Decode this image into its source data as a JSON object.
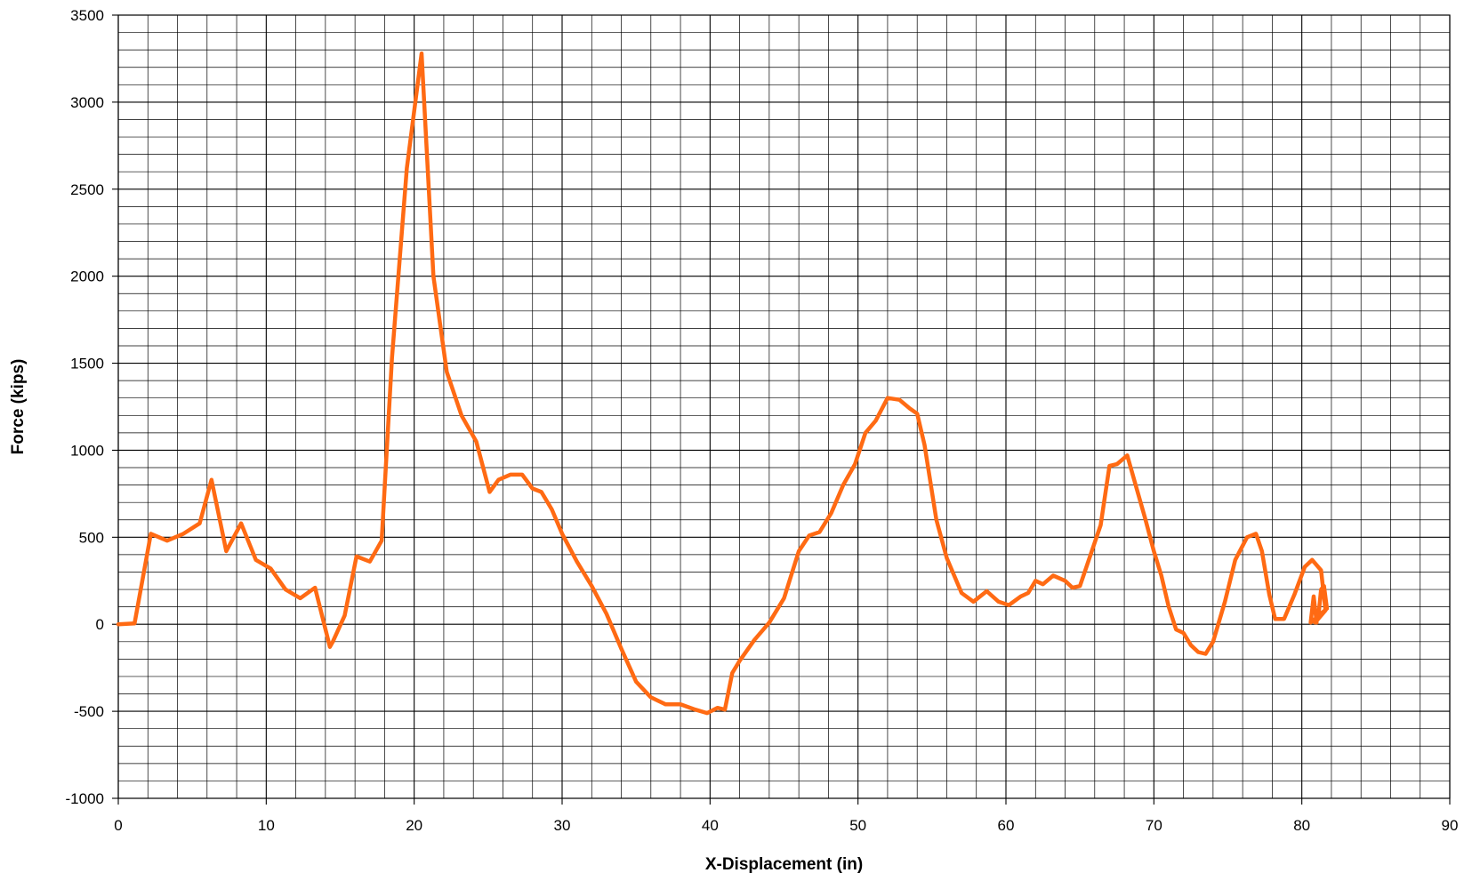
{
  "chart_data": {
    "type": "line",
    "title": "",
    "xlabel": "X-Displacement (in)",
    "ylabel": "Force (kips)",
    "xlim": [
      0,
      90
    ],
    "ylim": [
      -1000,
      3500
    ],
    "xticks": [
      0,
      10,
      20,
      30,
      40,
      50,
      60,
      70,
      80,
      90
    ],
    "yticks": [
      -1000,
      -500,
      0,
      500,
      1000,
      1500,
      2000,
      2500,
      3000,
      3500
    ],
    "grid": true,
    "legend": "none",
    "series": [
      {
        "color": "#FF6A13",
        "x": [
          0,
          1.1,
          2.2,
          3.3,
          4.4,
          5.5,
          6.3,
          7.3,
          8.3,
          9.3,
          10.3,
          11.3,
          12.3,
          13.3,
          14.3,
          14.5,
          15.3,
          16.1,
          17.0,
          17.8,
          18.5,
          19.5,
          20.5,
          21.3,
          22.2,
          23.2,
          24.2,
          25.1,
          25.7,
          26.5,
          27.3,
          28.0,
          28.6,
          29.3,
          30.0,
          31.0,
          32.0,
          33.0,
          34.0,
          35.0,
          36.0,
          37.0,
          38.0,
          39.0,
          39.8,
          40.5,
          41.0,
          41.5,
          42.0,
          43.0,
          44.0,
          45.0,
          46.0,
          46.7,
          47.4,
          48.2,
          49.0,
          49.8,
          50.5,
          51.2,
          52.0,
          52.8,
          53.5,
          54.0,
          54.5,
          55.3,
          56.0,
          57.0,
          57.8,
          58.7,
          59.5,
          60.2,
          61.0,
          61.5,
          62.0,
          62.5,
          63.2,
          64.0,
          64.5,
          65.0,
          65.8,
          66.4,
          67.0,
          67.5,
          68.2,
          68.8,
          69.4,
          70.0,
          70.5,
          71.0,
          71.5,
          72.0,
          72.5,
          73.0,
          73.5,
          74.0,
          74.8,
          75.5,
          76.3,
          76.9,
          77.3,
          77.8,
          78.2,
          78.8,
          79.5,
          80.2,
          80.7,
          81.3,
          81.6,
          80.9,
          81.1,
          81.3,
          81.5,
          81.7,
          80.6,
          80.8,
          81.0
        ],
        "y": [
          0,
          5,
          520,
          480,
          520,
          580,
          830,
          420,
          580,
          370,
          320,
          200,
          150,
          210,
          -130,
          -100,
          50,
          390,
          360,
          480,
          1530,
          2620,
          3280,
          2000,
          1450,
          1200,
          1050,
          760,
          830,
          860,
          860,
          780,
          760,
          660,
          520,
          360,
          220,
          60,
          -140,
          -330,
          -420,
          -460,
          -460,
          -490,
          -510,
          -480,
          -490,
          -280,
          -210,
          -90,
          10,
          150,
          420,
          510,
          530,
          640,
          800,
          920,
          1100,
          1170,
          1300,
          1290,
          1240,
          1210,
          1030,
          600,
          380,
          180,
          130,
          190,
          130,
          110,
          160,
          180,
          250,
          230,
          280,
          250,
          210,
          220,
          420,
          570,
          910,
          920,
          970,
          790,
          610,
          420,
          280,
          100,
          -30,
          -50,
          -120,
          -160,
          -170,
          -100,
          130,
          370,
          500,
          520,
          420,
          170,
          30,
          30,
          170,
          330,
          370,
          310,
          80,
          10,
          30,
          200,
          220,
          90,
          10,
          160,
          10
        ]
      }
    ]
  }
}
